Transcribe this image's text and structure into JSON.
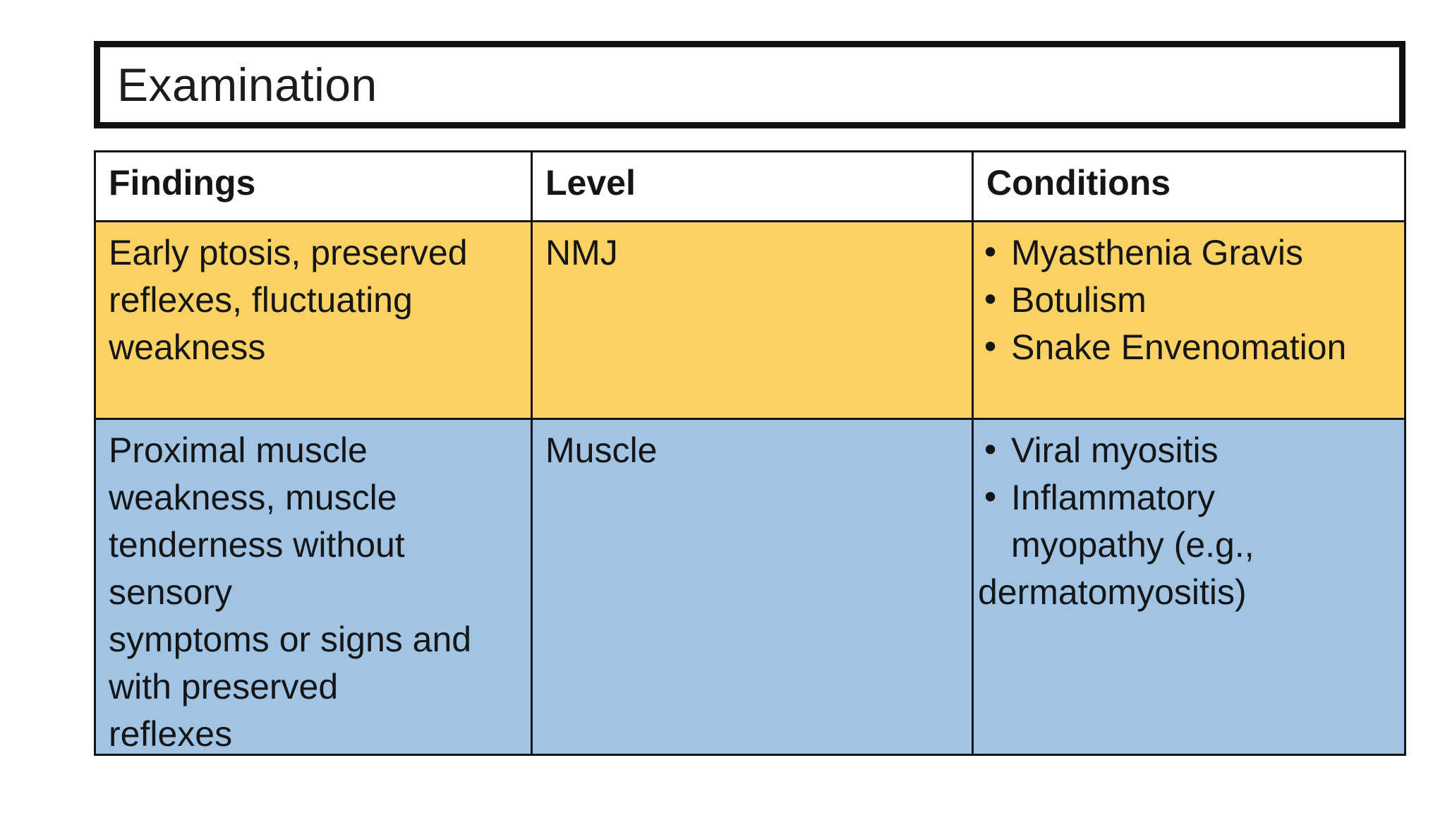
{
  "slide": {
    "title": "Examination",
    "background_color": "#ffffff",
    "border_color": "#141414",
    "text_color": "#151515"
  },
  "table": {
    "bullet_glyph": "•",
    "columns": [
      "Findings",
      "Level",
      "Conditions"
    ],
    "rows": [
      {
        "bg": "#FAD163",
        "findings": "Early ptosis, preserved\nreflexes, fluctuating\nweakness",
        "level": "NMJ",
        "conditions": [
          {
            "type": "bullet",
            "text": "Myasthenia Gravis"
          },
          {
            "type": "bullet",
            "text": "Botulism"
          },
          {
            "type": "bullet",
            "text": "Snake Envenomation"
          }
        ]
      },
      {
        "bg": "#A1C4E4",
        "findings": "Proximal muscle\nweakness, muscle\ntenderness without\nsensory\nsymptoms or signs and\nwith preserved\nreflexes",
        "level": "Muscle",
        "conditions": [
          {
            "type": "bullet",
            "text": "Viral myositis"
          },
          {
            "type": "bullet",
            "text": "Inflammatory"
          },
          {
            "type": "cont",
            "text": "myopathy (e.g.,"
          },
          {
            "type": "outdent",
            "text": "dermatomyositis)"
          }
        ]
      }
    ]
  }
}
